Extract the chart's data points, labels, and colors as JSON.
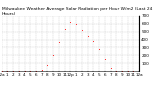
{
  "title": "Milwaukee Weather Average Solar Radiation per Hour W/m2 (Last 24 Hours)",
  "x_labels": [
    "12a",
    "1",
    "2",
    "3",
    "4",
    "5",
    "6",
    "7",
    "8",
    "9",
    "10",
    "11",
    "12p",
    "1",
    "2",
    "3",
    "4",
    "5",
    "6",
    "7",
    "8",
    "9",
    "10",
    "11",
    "12a"
  ],
  "hours": [
    0,
    1,
    2,
    3,
    4,
    5,
    6,
    7,
    8,
    9,
    10,
    11,
    12,
    13,
    14,
    15,
    16,
    17,
    18,
    19,
    20,
    21,
    22,
    23,
    24
  ],
  "values": [
    0,
    0,
    0,
    0,
    0,
    0,
    2,
    15,
    80,
    200,
    370,
    530,
    620,
    600,
    520,
    450,
    380,
    280,
    150,
    40,
    5,
    0,
    0,
    0,
    0
  ],
  "line_color": "#ff0000",
  "bg_color": "#ffffff",
  "grid_color": "#bbbbbb",
  "ylim": [
    0,
    700
  ],
  "yticks": [
    100,
    200,
    300,
    400,
    500,
    600,
    700
  ],
  "title_fontsize": 3.2,
  "label_fontsize": 3.0
}
